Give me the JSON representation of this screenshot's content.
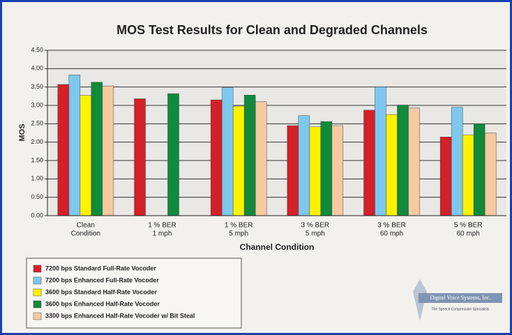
{
  "chart_data": {
    "type": "bar",
    "title": "MOS Test Results for Clean and Degraded Channels",
    "xlabel": "Channel Condition",
    "ylabel": "MOS",
    "categories": [
      [
        "Clean",
        "Condition"
      ],
      [
        "1 % BER",
        "1 mph"
      ],
      [
        "1 % BER",
        "5 mph"
      ],
      [
        "3 % BER",
        "5 mph"
      ],
      [
        "3 % BER",
        "60 mph"
      ],
      [
        "5 % BER",
        "60 mph"
      ]
    ],
    "series": [
      {
        "name": "7200 bps Standard Full-Rate Vocoder",
        "color": "#d42028",
        "values": [
          3.57,
          3.18,
          3.15,
          2.45,
          2.87,
          2.14
        ]
      },
      {
        "name": "7200 bps Enhanced Full-Rate Vocoder",
        "color": "#7ec8ef",
        "values": [
          3.83,
          null,
          3.48,
          2.72,
          3.5,
          2.95
        ]
      },
      {
        "name": "3600 bps Standard Half-Rate Vocoder",
        "color": "#fff200",
        "values": [
          3.27,
          null,
          2.98,
          2.42,
          2.75,
          2.2
        ]
      },
      {
        "name": "3600 bps Enhanced Half-Rate Vocoder",
        "color": "#108a3c",
        "values": [
          3.63,
          3.32,
          3.28,
          2.56,
          3.01,
          2.5
        ]
      },
      {
        "name": "3300 bps Enhanced Half-Rate Vocoder w/ Bit Steal",
        "color": "#f6c9a1",
        "values": [
          3.53,
          null,
          3.1,
          2.45,
          2.93,
          2.25
        ]
      }
    ],
    "ylim": [
      0,
      4.5
    ],
    "yticks": [
      {
        "value": 0,
        "label": "0.00"
      },
      {
        "value": 0.5,
        "label": "0.50"
      },
      {
        "value": 1,
        "label": "1.00"
      },
      {
        "value": 1.5,
        "label": "1.50"
      },
      {
        "value": 2,
        "label": "2.00"
      },
      {
        "value": 2.5,
        "label": "2.50"
      },
      {
        "value": 3,
        "label": "3.00"
      },
      {
        "value": 3.5,
        "label": "3.50"
      },
      {
        "value": 4,
        "label": "4.00"
      },
      {
        "value": 4.5,
        "label": "4.50"
      }
    ],
    "grid": true
  },
  "logo": {
    "name": "Digital Voice Systems, Inc.",
    "tagline": "The Speech Compression Specialists"
  }
}
